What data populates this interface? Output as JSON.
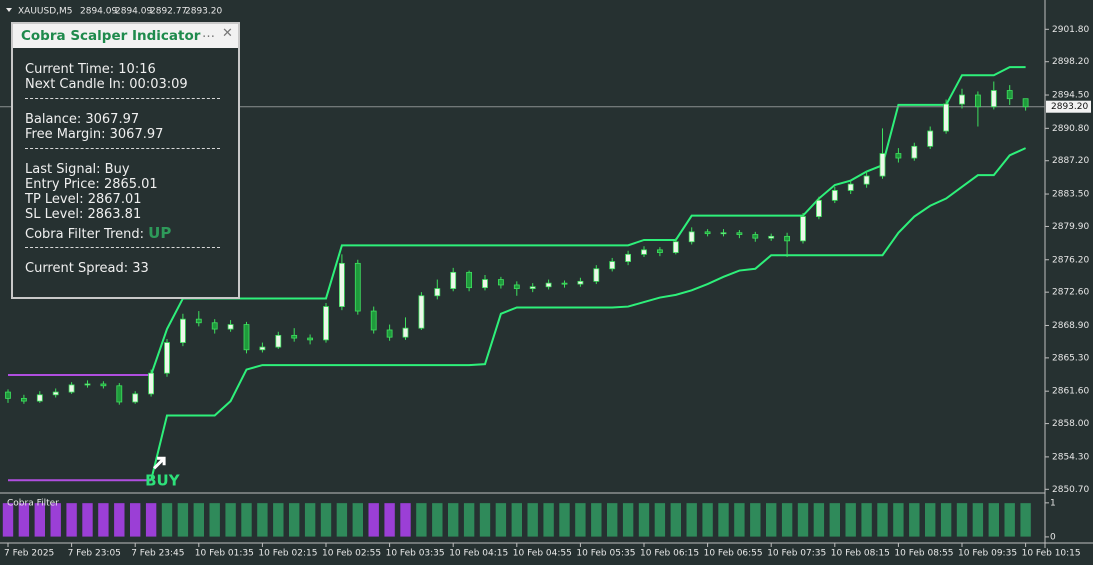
{
  "header": {
    "symbol": "XAUUSD,M5",
    "ohlc": [
      "2894.09",
      "2894.09",
      "2892.77",
      "2893.20"
    ]
  },
  "panel": {
    "title": "Cobra Scalper Indicator",
    "groups": [
      [
        "Current Time: 10:16",
        "Next Candle In: 00:03:09"
      ],
      [
        "Balance: 3067.97",
        "Free Margin: 3067.97"
      ],
      [
        "Last Signal: Buy",
        "Entry Price: 2865.01",
        "TP Level: 2867.01",
        "SL Level: 2863.81"
      ],
      [
        "Current Spread: 33"
      ]
    ],
    "trend": {
      "label": "Cobra Filter Trend:",
      "value": "UP"
    }
  },
  "chart_data": {
    "type": "candlestick",
    "categories": [
      "7 Feb 2025",
      null,
      null,
      null,
      "7 Feb 23:05",
      null,
      null,
      null,
      "7 Feb 23:45",
      null,
      null,
      null,
      "10 Feb 01:35",
      null,
      null,
      null,
      "10 Feb 02:15",
      null,
      null,
      null,
      "10 Feb 02:55",
      null,
      null,
      null,
      "10 Feb 03:35",
      null,
      null,
      null,
      "10 Feb 04:15",
      null,
      null,
      null,
      "10 Feb 04:55",
      null,
      null,
      null,
      "10 Feb 05:35",
      null,
      null,
      null,
      "10 Feb 06:15",
      null,
      null,
      null,
      "10 Feb 06:55",
      null,
      null,
      null,
      "10 Feb 07:35",
      null,
      null,
      null,
      "10 Feb 08:15",
      null,
      null,
      null,
      "10 Feb 08:55",
      null,
      null,
      null,
      "10 Feb 09:35",
      null,
      null,
      null,
      "10 Feb 10:15"
    ],
    "ohlc": [
      [
        2861.5,
        2861.8,
        2860.3,
        2860.8
      ],
      [
        2860.8,
        2861.2,
        2860.2,
        2860.5
      ],
      [
        2860.5,
        2861.6,
        2860.3,
        2861.2
      ],
      [
        2861.2,
        2861.9,
        2860.9,
        2861.5
      ],
      [
        2861.5,
        2862.6,
        2861.3,
        2862.3
      ],
      [
        2862.3,
        2862.8,
        2862.0,
        2862.4
      ],
      [
        2862.4,
        2862.7,
        2861.9,
        2862.2
      ],
      [
        2862.2,
        2862.5,
        2860.1,
        2860.4
      ],
      [
        2860.4,
        2861.6,
        2860.2,
        2861.3
      ],
      [
        2861.3,
        2864.0,
        2861.0,
        2863.6
      ],
      [
        2863.6,
        2867.4,
        2863.2,
        2867.0
      ],
      [
        2867.0,
        2870.2,
        2866.6,
        2869.6
      ],
      [
        2869.6,
        2870.5,
        2868.8,
        2869.2
      ],
      [
        2869.2,
        2869.6,
        2868.0,
        2868.5
      ],
      [
        2868.5,
        2869.5,
        2868.2,
        2869.0
      ],
      [
        2869.0,
        2869.3,
        2865.8,
        2866.2
      ],
      [
        2866.2,
        2867.0,
        2865.9,
        2866.5
      ],
      [
        2866.5,
        2868.2,
        2866.3,
        2867.8
      ],
      [
        2867.8,
        2868.6,
        2867.1,
        2867.5
      ],
      [
        2867.5,
        2867.9,
        2866.8,
        2867.3
      ],
      [
        2867.3,
        2871.4,
        2867.0,
        2871.0
      ],
      [
        2871.0,
        2876.8,
        2870.6,
        2875.8
      ],
      [
        2875.8,
        2876.2,
        2870.1,
        2870.5
      ],
      [
        2870.5,
        2871.0,
        2868.0,
        2868.4
      ],
      [
        2868.4,
        2869.0,
        2867.2,
        2867.6
      ],
      [
        2867.6,
        2869.8,
        2867.3,
        2868.6
      ],
      [
        2868.6,
        2872.6,
        2868.4,
        2872.2
      ],
      [
        2872.2,
        2874.0,
        2871.8,
        2873.0
      ],
      [
        2873.0,
        2875.3,
        2872.7,
        2874.8
      ],
      [
        2874.8,
        2875.0,
        2872.7,
        2873.1
      ],
      [
        2873.1,
        2874.5,
        2872.8,
        2874.0
      ],
      [
        2874.0,
        2874.3,
        2873.0,
        2873.4
      ],
      [
        2873.4,
        2873.8,
        2872.2,
        2873.0
      ],
      [
        2873.0,
        2873.6,
        2872.6,
        2873.2
      ],
      [
        2873.2,
        2874.0,
        2872.9,
        2873.6
      ],
      [
        2873.6,
        2873.9,
        2873.1,
        2873.5
      ],
      [
        2873.5,
        2874.2,
        2873.2,
        2873.8
      ],
      [
        2873.8,
        2875.6,
        2873.5,
        2875.2
      ],
      [
        2875.2,
        2876.4,
        2874.9,
        2876.0
      ],
      [
        2876.0,
        2877.2,
        2875.6,
        2876.8
      ],
      [
        2876.8,
        2877.7,
        2876.5,
        2877.3
      ],
      [
        2877.3,
        2877.6,
        2876.6,
        2877.0
      ],
      [
        2877.0,
        2878.6,
        2876.8,
        2878.2
      ],
      [
        2878.2,
        2879.8,
        2877.9,
        2879.3
      ],
      [
        2879.3,
        2879.6,
        2878.8,
        2879.1
      ],
      [
        2879.1,
        2879.6,
        2878.8,
        2879.2
      ],
      [
        2879.2,
        2879.5,
        2878.6,
        2879.0
      ],
      [
        2879.0,
        2879.3,
        2878.2,
        2878.6
      ],
      [
        2878.6,
        2879.1,
        2878.3,
        2878.8
      ],
      [
        2878.8,
        2879.2,
        2876.5,
        2878.3
      ],
      [
        2878.3,
        2881.4,
        2878.0,
        2881.0
      ],
      [
        2881.0,
        2883.2,
        2880.7,
        2882.8
      ],
      [
        2882.8,
        2884.3,
        2882.5,
        2883.9
      ],
      [
        2883.9,
        2885.0,
        2883.5,
        2884.6
      ],
      [
        2884.6,
        2886.0,
        2884.2,
        2885.5
      ],
      [
        2885.5,
        2890.8,
        2885.2,
        2888.0
      ],
      [
        2888.0,
        2888.6,
        2887.0,
        2887.5
      ],
      [
        2887.5,
        2889.2,
        2887.2,
        2888.8
      ],
      [
        2888.8,
        2891.0,
        2888.5,
        2890.5
      ],
      [
        2890.5,
        2894.0,
        2890.2,
        2893.5
      ],
      [
        2893.5,
        2895.2,
        2893.0,
        2894.5
      ],
      [
        2894.5,
        2894.9,
        2891.0,
        2893.2
      ],
      [
        2893.2,
        2896.0,
        2892.9,
        2895.0
      ],
      [
        2895.0,
        2895.6,
        2893.4,
        2894.09
      ],
      [
        2894.09,
        2894.09,
        2892.77,
        2893.2
      ]
    ],
    "up_color": "#eef7ea",
    "down_color": "#1f9a3c",
    "wick_color": "#3ee05e",
    "bands": [
      {
        "color": "#b04fe0",
        "values": [
          2863.4,
          2863.4,
          2863.4,
          2863.4,
          2863.4,
          2863.4,
          2863.4,
          2863.4,
          2863.4,
          2863.4,
          null,
          null,
          null,
          null,
          null,
          null,
          null,
          null,
          null,
          null,
          null,
          null,
          null,
          null,
          null,
          null,
          null,
          null,
          null,
          null,
          null,
          null,
          null,
          null,
          null,
          null,
          null,
          null,
          null,
          null,
          null,
          null,
          null,
          null,
          null,
          null,
          null,
          null,
          null,
          null,
          null,
          null,
          null,
          null,
          null,
          null,
          null,
          null,
          null,
          null,
          null,
          null,
          null,
          null,
          null
        ]
      },
      {
        "color": "#b04fe0",
        "values": [
          2851.7,
          2851.7,
          2851.7,
          2851.7,
          2851.7,
          2851.7,
          2851.7,
          2851.7,
          2851.7,
          2851.7,
          null,
          null,
          null,
          null,
          null,
          null,
          null,
          null,
          null,
          null,
          null,
          null,
          null,
          null,
          null,
          null,
          null,
          null,
          null,
          null,
          null,
          null,
          null,
          null,
          null,
          null,
          null,
          null,
          null,
          null,
          null,
          null,
          null,
          null,
          null,
          null,
          null,
          null,
          null,
          null,
          null,
          null,
          null,
          null,
          null,
          null,
          null,
          null,
          null,
          null,
          null,
          null,
          null,
          null,
          null
        ]
      },
      {
        "color": "#2ef07a",
        "values": [
          null,
          null,
          null,
          null,
          null,
          null,
          null,
          null,
          null,
          2863.4,
          2868.5,
          2871.9,
          2871.9,
          2871.9,
          2871.9,
          2871.9,
          2871.9,
          2871.9,
          2871.9,
          2871.9,
          2871.9,
          2877.8,
          2877.8,
          2877.8,
          2877.8,
          2877.8,
          2877.8,
          2877.8,
          2877.8,
          2877.8,
          2877.8,
          2877.8,
          2877.8,
          2877.8,
          2877.8,
          2877.8,
          2877.8,
          2877.8,
          2877.8,
          2877.8,
          2878.4,
          2878.4,
          2878.4,
          2881.1,
          2881.1,
          2881.1,
          2881.1,
          2881.1,
          2881.1,
          2881.1,
          2881.1,
          2883.0,
          2884.5,
          2885.0,
          2886.0,
          2886.7,
          2893.4,
          2893.4,
          2893.4,
          2893.4,
          2896.7,
          2896.7,
          2896.7,
          2897.6,
          2897.6
        ]
      },
      {
        "color": "#2ef07a",
        "values": [
          null,
          null,
          null,
          null,
          null,
          null,
          null,
          null,
          null,
          2851.7,
          2858.9,
          2858.9,
          2858.9,
          2858.9,
          2860.5,
          2864.0,
          2864.5,
          2864.5,
          2864.5,
          2864.5,
          2864.5,
          2864.5,
          2864.5,
          2864.5,
          2864.5,
          2864.5,
          2864.5,
          2864.5,
          2864.5,
          2864.5,
          2864.6,
          2870.2,
          2870.9,
          2870.9,
          2870.9,
          2870.9,
          2870.9,
          2870.9,
          2870.9,
          2871.0,
          2871.5,
          2872.0,
          2872.3,
          2872.8,
          2873.5,
          2874.3,
          2875.0,
          2875.2,
          2876.7,
          2876.7,
          2876.7,
          2876.7,
          2876.7,
          2876.7,
          2876.7,
          2876.7,
          2879.2,
          2881.0,
          2882.2,
          2883.0,
          2884.3,
          2885.6,
          2885.6,
          2887.8,
          2888.6
        ]
      }
    ],
    "ylim": [
      2850.4,
      2903.5
    ],
    "yticks": [
      {
        "value": 2901.8,
        "label": "2901.80"
      },
      {
        "value": 2898.2,
        "label": "2898.20"
      },
      {
        "value": 2894.5,
        "label": "2894.50"
      },
      {
        "value": 2890.8,
        "label": "2890.80"
      },
      {
        "value": 2887.2,
        "label": "2887.20"
      },
      {
        "value": 2883.5,
        "label": "2883.50"
      },
      {
        "value": 2879.9,
        "label": "2879.90"
      },
      {
        "value": 2876.2,
        "label": "2876.20"
      },
      {
        "value": 2872.6,
        "label": "2872.60"
      },
      {
        "value": 2868.9,
        "label": "2868.90"
      },
      {
        "value": 2865.3,
        "label": "2865.30"
      },
      {
        "value": 2861.6,
        "label": "2861.60"
      },
      {
        "value": 2858.0,
        "label": "2858.00"
      },
      {
        "value": 2854.3,
        "label": "2854.30"
      },
      {
        "value": 2850.7,
        "label": "2850.70"
      }
    ],
    "last_price": {
      "value": 2893.2,
      "label": "2893.20"
    },
    "signal": {
      "text": "BUY",
      "index": 9
    },
    "filter": {
      "label": "Cobra Filter",
      "ylim": [
        -0.12,
        1.26
      ],
      "yticks": [
        1,
        0
      ],
      "values": [
        1,
        1,
        1,
        1,
        1,
        1,
        1,
        1,
        1,
        1,
        1,
        1,
        1,
        1,
        1,
        1,
        1,
        1,
        1,
        1,
        1,
        1,
        1,
        1,
        1,
        1,
        1,
        1,
        1,
        1,
        1,
        1,
        1,
        1,
        1,
        1,
        1,
        1,
        1,
        1,
        1,
        1,
        1,
        1,
        1,
        1,
        1,
        1,
        1,
        1,
        1,
        1,
        1,
        1,
        1,
        1,
        1,
        1,
        1,
        1,
        1,
        1,
        1,
        1,
        1
      ],
      "colors": [
        "#9b3fd6",
        "#9b3fd6",
        "#9b3fd6",
        "#9b3fd6",
        "#9b3fd6",
        "#9b3fd6",
        "#9b3fd6",
        "#9b3fd6",
        "#9b3fd6",
        "#9b3fd6",
        "#2f8a5a",
        "#2f8a5a",
        "#2f8a5a",
        "#2f8a5a",
        "#2f8a5a",
        "#2f8a5a",
        "#2f8a5a",
        "#2f8a5a",
        "#2f8a5a",
        "#2f8a5a",
        "#2f8a5a",
        "#2f8a5a",
        "#2f8a5a",
        "#9b3fd6",
        "#9b3fd6",
        "#9b3fd6",
        "#2f8a5a",
        "#2f8a5a",
        "#2f8a5a",
        "#2f8a5a",
        "#2f8a5a",
        "#2f8a5a",
        "#2f8a5a",
        "#2f8a5a",
        "#2f8a5a",
        "#2f8a5a",
        "#2f8a5a",
        "#2f8a5a",
        "#2f8a5a",
        "#2f8a5a",
        "#2f8a5a",
        "#2f8a5a",
        "#2f8a5a",
        "#2f8a5a",
        "#2f8a5a",
        "#2f8a5a",
        "#2f8a5a",
        "#2f8a5a",
        "#2f8a5a",
        "#2f8a5a",
        "#2f8a5a",
        "#2f8a5a",
        "#2f8a5a",
        "#2f8a5a",
        "#2f8a5a",
        "#2f8a5a",
        "#2f8a5a",
        "#2f8a5a",
        "#2f8a5a",
        "#2f8a5a",
        "#2f8a5a",
        "#2f8a5a",
        "#2f8a5a",
        "#2f8a5a",
        "#2f8a5a"
      ]
    }
  }
}
